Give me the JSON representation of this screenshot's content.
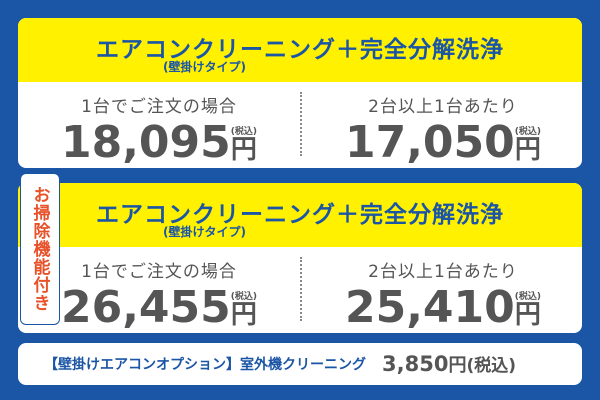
{
  "cards": [
    {
      "title": "エアコンクリーニング＋完全分解洗浄",
      "subtitle": "(壁掛けタイプ)",
      "options": [
        {
          "label": "1台でご注文の場合",
          "price": "18,095",
          "tax": "(税込)",
          "unit": "円"
        },
        {
          "label": "2台以上1台あたり",
          "price": "17,050",
          "tax": "(税込)",
          "unit": "円"
        }
      ]
    },
    {
      "badge": "お掃除機能付き",
      "title": "エアコンクリーニング＋完全分解洗浄",
      "subtitle": "(壁掛けタイプ)",
      "options": [
        {
          "label": "1台でご注文の場合",
          "price": "26,455",
          "tax": "(税込)",
          "unit": "円"
        },
        {
          "label": "2台以上1台あたり",
          "price": "25,410",
          "tax": "(税込)",
          "unit": "円"
        }
      ]
    }
  ],
  "option": {
    "label": "【壁掛けエアコンオプション】室外機クリーニング",
    "price": "3,850",
    "unit": "円",
    "tax": "(税込)"
  }
}
